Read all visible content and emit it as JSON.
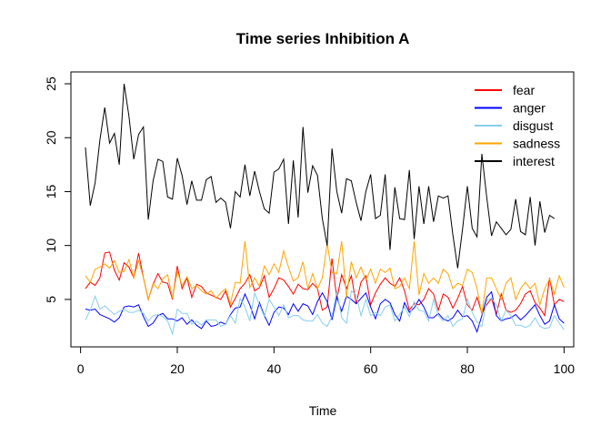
{
  "chart_data": {
    "type": "line",
    "title": "Time series Inhibition A",
    "xlabel": "Time",
    "ylabel": "",
    "xlim": [
      0,
      100
    ],
    "ylim": [
      0,
      26
    ],
    "x_ticks": [
      0,
      20,
      40,
      60,
      80,
      100
    ],
    "x_tick_labels": [
      "0",
      "20",
      "40",
      "60",
      "80",
      "100"
    ],
    "y_ticks": [
      5,
      10,
      15,
      20,
      25
    ],
    "y_tick_labels": [
      "5",
      "10",
      "15",
      "20",
      "25"
    ],
    "legend_position": "top-right",
    "x_start": 1,
    "series": [
      {
        "name": "fear",
        "color": "#ff0000",
        "values": [
          6.0,
          6.6,
          6.3,
          7.0,
          9.3,
          9.4,
          7.7,
          6.8,
          8.4,
          8.0,
          7.0,
          9.3,
          7.0,
          5.0,
          6.4,
          7.4,
          6.6,
          6.5,
          5.0,
          8.1,
          6.0,
          7.0,
          5.2,
          6.4,
          6.2,
          5.6,
          5.4,
          5.2,
          5.0,
          5.8,
          4.3,
          5.1,
          6.0,
          6.5,
          7.3,
          5.8,
          6.1,
          7.2,
          5.2,
          6.0,
          7.0,
          6.8,
          6.2,
          5.5,
          6.4,
          6.0,
          5.9,
          6.5,
          6.0,
          4.0,
          4.3,
          8.8,
          5.0,
          7.3,
          6.0,
          7.2,
          4.6,
          6.6,
          7.2,
          4.5,
          5.6,
          6.4,
          7.0,
          6.5,
          6.2,
          7.0,
          5.8,
          4.0,
          4.6,
          4.5,
          5.0,
          6.0,
          5.5,
          4.0,
          5.5,
          5.2,
          4.2,
          5.1,
          6.2,
          4.5,
          4.0,
          5.2,
          3.7,
          4.5,
          5.1,
          3.6,
          5.5,
          4.0,
          3.8,
          4.0,
          4.6,
          5.5,
          5.8,
          4.7,
          4.2,
          3.5,
          7.0,
          4.5,
          5.0,
          4.8
        ]
      },
      {
        "name": "anger",
        "color": "#0000ff",
        "values": [
          4.1,
          4.0,
          4.1,
          3.6,
          3.4,
          3.2,
          2.9,
          3.3,
          4.3,
          4.4,
          4.3,
          4.5,
          3.4,
          2.5,
          2.8,
          3.5,
          3.7,
          3.2,
          3.2,
          3.0,
          3.3,
          2.7,
          3.1,
          2.6,
          2.3,
          3.0,
          2.5,
          2.6,
          2.9,
          2.7,
          3.6,
          4.2,
          4.3,
          5.5,
          4.5,
          3.2,
          4.7,
          3.5,
          2.6,
          3.8,
          4.3,
          4.2,
          3.6,
          4.6,
          3.9,
          4.6,
          4.4,
          3.6,
          4.8,
          5.6,
          4.8,
          3.1,
          5.2,
          3.9,
          5.3,
          5.0,
          4.6,
          5.1,
          5.6,
          4.3,
          3.2,
          4.6,
          5.0,
          4.7,
          3.6,
          3.0,
          4.7,
          3.8,
          4.2,
          5.0,
          4.3,
          3.3,
          3.3,
          3.7,
          3.2,
          3.0,
          3.3,
          4.0,
          3.4,
          3.5,
          3.0,
          2.0,
          3.5,
          5.2,
          5.7,
          3.5,
          3.0,
          3.2,
          3.3,
          3.6,
          3.1,
          3.5,
          4.0,
          4.5,
          3.5,
          2.7,
          3.0,
          4.5,
          3.2,
          2.8
        ]
      },
      {
        "name": "disgust",
        "color": "#87ceeb",
        "values": [
          3.1,
          4.0,
          5.3,
          4.1,
          4.4,
          4.0,
          3.6,
          3.9,
          4.1,
          3.8,
          3.8,
          4.0,
          3.7,
          3.0,
          3.5,
          3.6,
          3.4,
          3.0,
          1.8,
          4.1,
          3.7,
          3.7,
          2.7,
          3.0,
          2.6,
          3.1,
          3.1,
          3.1,
          2.5,
          2.7,
          3.5,
          2.8,
          5.1,
          4.3,
          3.0,
          5.6,
          4.5,
          3.4,
          5.0,
          4.3,
          3.5,
          4.5,
          3.3,
          3.5,
          3.5,
          3.1,
          3.0,
          3.0,
          3.6,
          2.8,
          2.5,
          3.4,
          5.8,
          3.3,
          2.8,
          5.8,
          5.4,
          3.5,
          5.0,
          3.5,
          3.8,
          3.5,
          4.3,
          4.5,
          3.0,
          3.6,
          4.3,
          3.4,
          4.8,
          4.0,
          3.9,
          3.0,
          5.0,
          3.5,
          3.0,
          3.5,
          2.5,
          3.0,
          3.2,
          5.0,
          3.8,
          2.9,
          2.5,
          4.9,
          5.1,
          4.5,
          3.0,
          4.0,
          3.5,
          2.6,
          2.6,
          2.4,
          2.6,
          3.3,
          2.5,
          2.3,
          2.4,
          3.5,
          2.8,
          2.2
        ]
      },
      {
        "name": "sadness",
        "color": "#ffa500",
        "values": [
          7.2,
          6.6,
          7.8,
          8.0,
          8.3,
          7.9,
          8.6,
          7.5,
          7.6,
          8.7,
          7.0,
          8.6,
          7.0,
          5.0,
          6.5,
          6.0,
          6.9,
          7.3,
          5.1,
          7.6,
          6.3,
          7.1,
          6.0,
          6.3,
          5.8,
          5.5,
          5.8,
          5.1,
          5.6,
          6.0,
          4.6,
          6.6,
          6.5,
          10.4,
          6.1,
          7.0,
          6.2,
          8.1,
          7.3,
          8.3,
          7.5,
          9.5,
          8.0,
          6.7,
          7.0,
          8.5,
          6.0,
          7.4,
          6.0,
          7.0,
          10.2,
          7.5,
          7.4,
          10.4,
          5.2,
          8.5,
          7.0,
          8.0,
          6.8,
          7.8,
          6.5,
          7.8,
          7.5,
          7.9,
          6.0,
          6.2,
          7.0,
          6.0,
          10.4,
          5.4,
          7.4,
          6.5,
          7.0,
          6.5,
          7.8,
          7.4,
          6.0,
          6.5,
          6.3,
          7.8,
          7.5,
          6.0,
          3.6,
          7.0,
          7.0,
          6.0,
          5.0,
          6.5,
          7.0,
          5.0,
          6.0,
          6.6,
          6.0,
          6.5,
          4.5,
          6.0,
          6.9,
          5.5,
          7.2,
          6.1
        ]
      },
      {
        "name": "interest",
        "color": "#000000",
        "values": [
          19.1,
          13.7,
          15.8,
          19.8,
          22.8,
          19.5,
          20.4,
          17.5,
          25.0,
          22.0,
          18.0,
          20.3,
          21.0,
          12.4,
          16.0,
          18.0,
          17.8,
          14.5,
          14.3,
          18.1,
          16.5,
          13.8,
          16.0,
          14.2,
          14.2,
          16.1,
          16.4,
          14.0,
          14.4,
          14.0,
          11.6,
          15.0,
          14.5,
          17.5,
          14.6,
          16.9,
          15.0,
          13.4,
          13.0,
          16.8,
          17.1,
          18.0,
          12.0,
          17.9,
          12.6,
          21.0,
          14.9,
          17.4,
          16.5,
          12.5,
          10.0,
          19.0,
          15.0,
          13.0,
          16.2,
          16.0,
          14.0,
          12.3,
          15.0,
          16.6,
          12.5,
          12.8,
          16.6,
          9.6,
          15.4,
          12.5,
          12.4,
          17.0,
          10.6,
          15.5,
          12.0,
          15.5,
          12.2,
          14.6,
          14.4,
          14.6,
          11.0,
          7.9,
          11.5,
          15.5,
          11.6,
          10.8,
          18.5,
          14.5,
          10.9,
          12.2,
          11.6,
          11.0,
          11.5,
          14.3,
          11.3,
          11.0,
          14.5,
          10.0,
          14.1,
          11.2,
          12.8,
          12.5,
          null,
          null
        ]
      }
    ]
  }
}
